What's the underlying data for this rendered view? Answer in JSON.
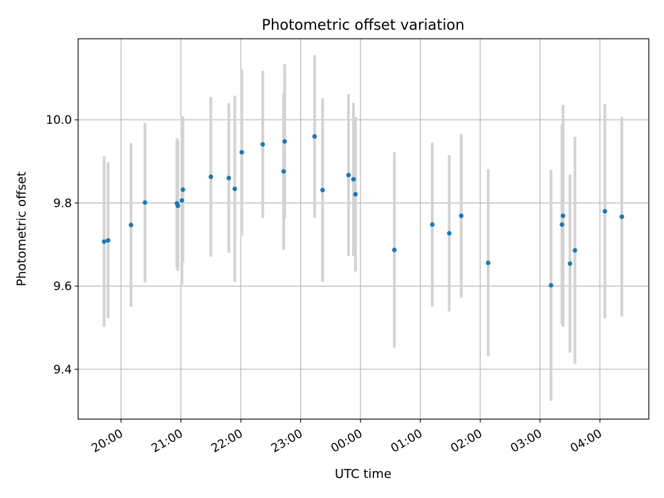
{
  "chart_data": {
    "type": "scatter",
    "title": "Photometric offset variation",
    "xlabel": "UTC time",
    "ylabel": "Photometric offset",
    "x_ticks": [
      "20:00",
      "21:00",
      "22:00",
      "23:00",
      "00:00",
      "01:00",
      "02:00",
      "03:00",
      "04:00"
    ],
    "y_ticks": [
      "9.4",
      "9.6",
      "9.8",
      "10.0"
    ],
    "y_tick_values": [
      9.4,
      9.6,
      9.8,
      10.0
    ],
    "xlim": [
      "19:17",
      "04:49"
    ],
    "ylim": [
      9.28,
      10.195
    ],
    "grid": true,
    "colors": {
      "point": "#1f77b4",
      "errorbar": "#d3d3d3",
      "grid": "#b0b0b0"
    },
    "series": [
      {
        "points": [
          {
            "x": "19:43",
            "y": 9.707,
            "yerr": 0.205
          },
          {
            "x": "19:47",
            "y": 9.71,
            "yerr": 0.188
          },
          {
            "x": "20:10",
            "y": 9.747,
            "yerr": 0.197
          },
          {
            "x": "20:24",
            "y": 9.801,
            "yerr": 0.192
          },
          {
            "x": "20:56",
            "y": 9.799,
            "yerr": 0.157
          },
          {
            "x": "20:57",
            "y": 9.793,
            "yerr": 0.157
          },
          {
            "x": "21:01",
            "y": 9.806,
            "yerr": 0.203
          },
          {
            "x": "21:02",
            "y": 9.832,
            "yerr": 0.175
          },
          {
            "x": "21:30",
            "y": 9.863,
            "yerr": 0.192
          },
          {
            "x": "21:48",
            "y": 9.86,
            "yerr": 0.18
          },
          {
            "x": "21:54",
            "y": 9.834,
            "yerr": 0.224
          },
          {
            "x": "22:01",
            "y": 9.922,
            "yerr": 0.2
          },
          {
            "x": "22:22",
            "y": 9.941,
            "yerr": 0.177
          },
          {
            "x": "22:43",
            "y": 9.876,
            "yerr": 0.188
          },
          {
            "x": "22:44",
            "y": 9.948,
            "yerr": 0.186
          },
          {
            "x": "23:14",
            "y": 9.96,
            "yerr": 0.196
          },
          {
            "x": "23:22",
            "y": 9.831,
            "yerr": 0.221
          },
          {
            "x": "23:48",
            "y": 9.867,
            "yerr": 0.195
          },
          {
            "x": "23:53",
            "y": 9.857,
            "yerr": 0.184
          },
          {
            "x": "23:55",
            "y": 9.821,
            "yerr": 0.186
          },
          {
            "x": "00:34",
            "y": 9.687,
            "yerr": 0.235
          },
          {
            "x": "01:12",
            "y": 9.748,
            "yerr": 0.197
          },
          {
            "x": "01:29",
            "y": 9.727,
            "yerr": 0.188
          },
          {
            "x": "01:41",
            "y": 9.769,
            "yerr": 0.197
          },
          {
            "x": "02:08",
            "y": 9.656,
            "yerr": 0.225
          },
          {
            "x": "03:11",
            "y": 9.602,
            "yerr": 0.278
          },
          {
            "x": "03:22",
            "y": 9.748,
            "yerr": 0.24
          },
          {
            "x": "03:23",
            "y": 9.769,
            "yerr": 0.267
          },
          {
            "x": "03:30",
            "y": 9.654,
            "yerr": 0.214
          },
          {
            "x": "03:35",
            "y": 9.686,
            "yerr": 0.273
          },
          {
            "x": "04:05",
            "y": 9.78,
            "yerr": 0.258
          },
          {
            "x": "04:22",
            "y": 9.767,
            "yerr": 0.24
          }
        ]
      }
    ]
  }
}
